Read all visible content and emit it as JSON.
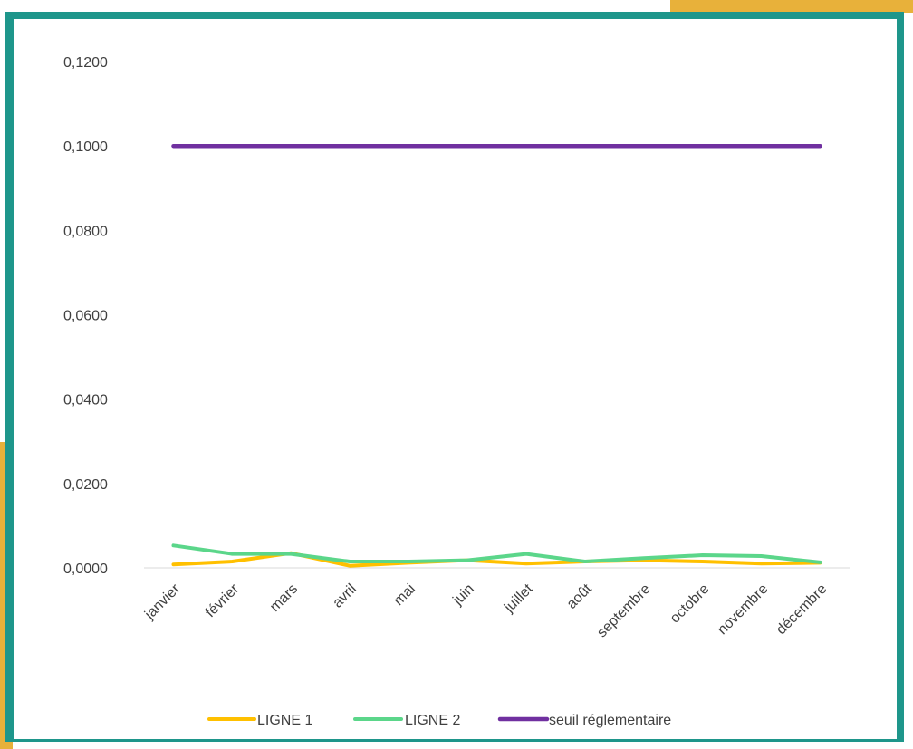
{
  "colors": {
    "frame_border": "#1e968b",
    "accent_gold": "#e8b13a",
    "gridline": "#d9d9d9",
    "text": "#404040"
  },
  "chart_data": {
    "type": "line",
    "title": "",
    "xlabel": "",
    "ylabel": "",
    "ylim": [
      0,
      0.12
    ],
    "y_ticks": [
      "0,0000",
      "0,0200",
      "0,0400",
      "0,0600",
      "0,0800",
      "0,1000",
      "0,1200"
    ],
    "y_tick_values": [
      0,
      0.02,
      0.04,
      0.06,
      0.08,
      0.1,
      0.12
    ],
    "grid": false,
    "legend_position": "bottom",
    "categories": [
      "janvier",
      "février",
      "mars",
      "avril",
      "mai",
      "juin",
      "juillet",
      "août",
      "septembre",
      "octobre",
      "novembre",
      "décembre"
    ],
    "series": [
      {
        "name": "LIGNE 1",
        "color": "#ffc000",
        "values": [
          0.0008,
          0.0015,
          0.0035,
          0.0005,
          0.0012,
          0.0018,
          0.001,
          0.0015,
          0.0018,
          0.0015,
          0.001,
          0.0012
        ]
      },
      {
        "name": "LIGNE 2",
        "color": "#5bd68a",
        "values": [
          0.0053,
          0.0033,
          0.0033,
          0.0015,
          0.0015,
          0.0018,
          0.0033,
          0.0015,
          0.0023,
          0.003,
          0.0028,
          0.0013
        ]
      },
      {
        "name": "seuil réglementaire",
        "color": "#7030a0",
        "values": [
          0.1,
          0.1,
          0.1,
          0.1,
          0.1,
          0.1,
          0.1,
          0.1,
          0.1,
          0.1,
          0.1,
          0.1
        ]
      }
    ]
  }
}
